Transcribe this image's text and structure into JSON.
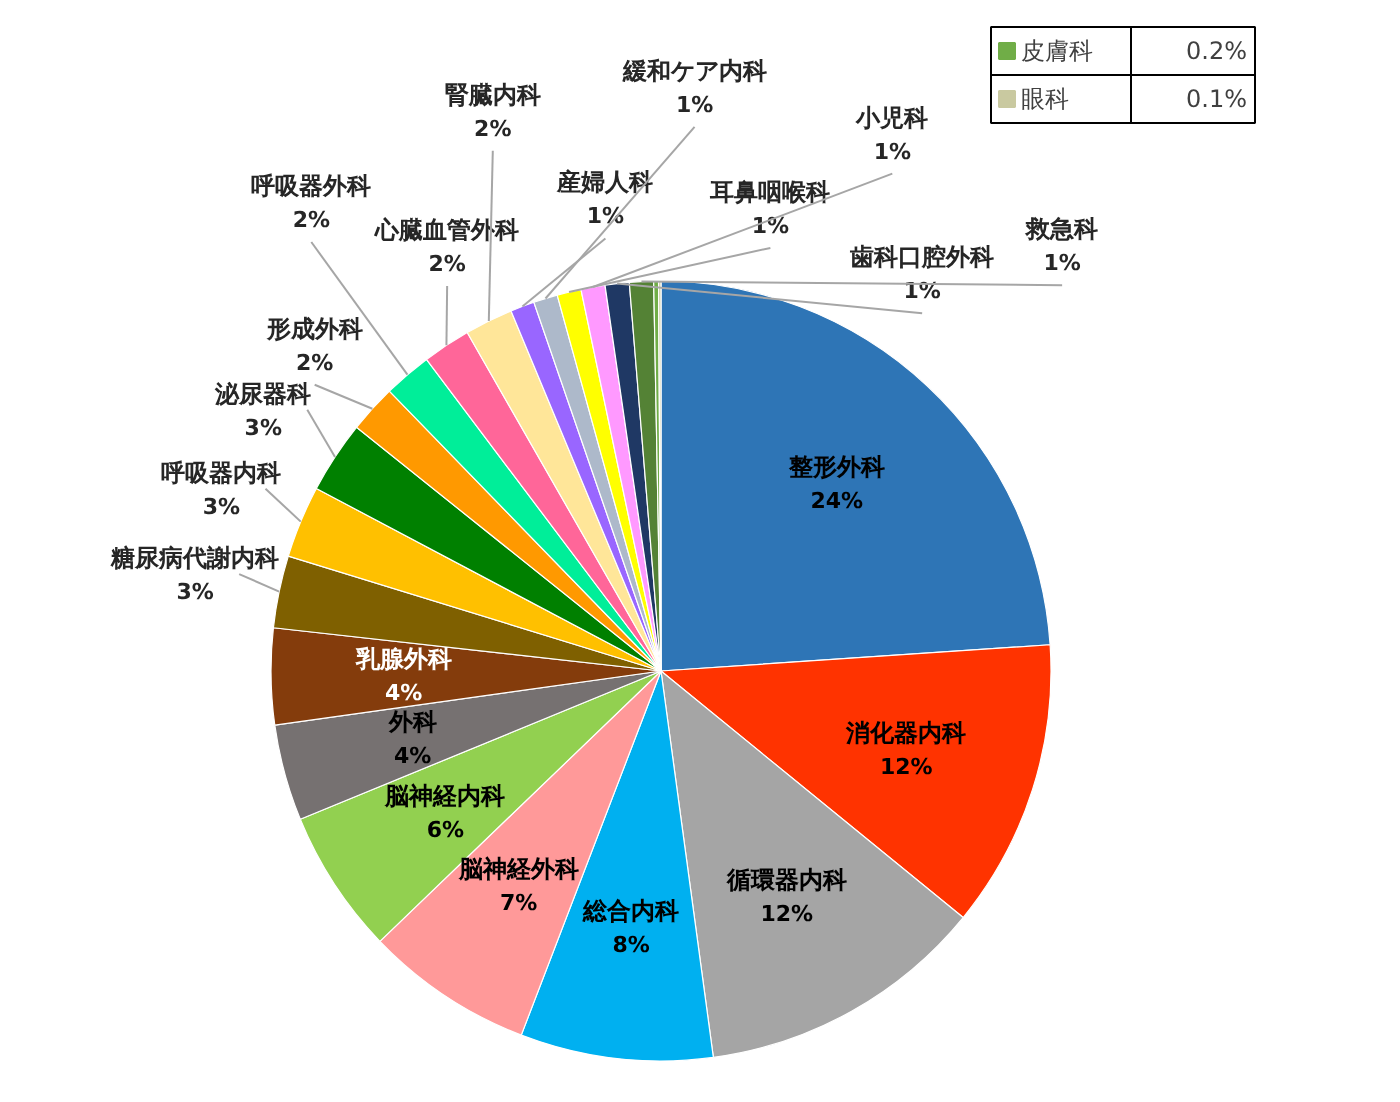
{
  "chart_data": {
    "type": "pie",
    "categories": [
      "整形外科",
      "消化器内科",
      "循環器内科",
      "総合内科",
      "脳神経外科",
      "脳神経内科",
      "外科",
      "乳腺外科",
      "糖尿病代謝内科",
      "呼吸器内科",
      "泌尿器科",
      "形成外科",
      "呼吸器外科",
      "心臓血管外科",
      "腎臓内科",
      "産婦人科",
      "緩和ケア内科",
      "耳鼻咽喉科",
      "小児科",
      "歯科口腔外科",
      "救急科",
      "皮膚科",
      "眼科"
    ],
    "values": [
      24,
      12,
      12,
      8,
      7,
      6,
      4,
      4,
      3,
      3,
      3,
      2,
      2,
      2,
      2,
      1,
      1,
      1,
      1,
      1,
      1,
      0.2,
      0.1
    ],
    "colors": [
      "#2e75b6",
      "#ff3300",
      "#a5a5a5",
      "#00b0f0",
      "#ff9999",
      "#92d050",
      "#767171",
      "#843c0c",
      "#7f6000",
      "#ffc000",
      "#008000",
      "#ff9900",
      "#00ee99",
      "#ff6699",
      "#ffe699",
      "#9966ff",
      "#adb9ca",
      "#ffff00",
      "#ff99ff",
      "#1f3864",
      "#548235",
      "#70ad47",
      "#c9c9a0"
    ],
    "legend": "top right",
    "value_labels": [
      "24%",
      "12%",
      "12%",
      "8%",
      "7%",
      "6%",
      "4%",
      "4%",
      "3%",
      "3%",
      "3%",
      "2%",
      "2%",
      "2%",
      "2%",
      "1%",
      "1%",
      "1%",
      "1%",
      "1%",
      "1%",
      "0.2%",
      "0.1%"
    ]
  }
}
